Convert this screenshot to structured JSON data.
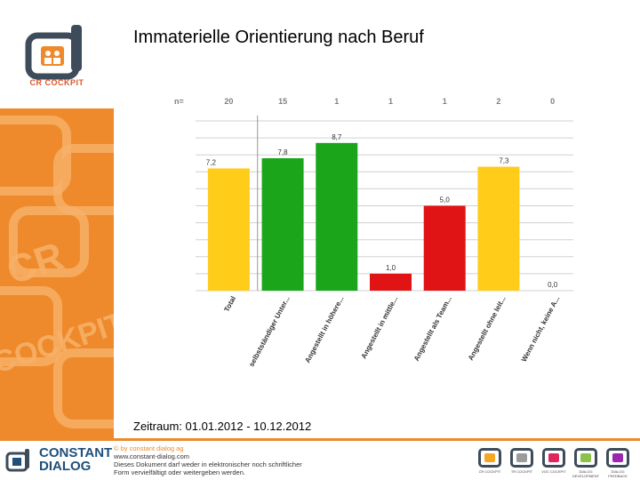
{
  "title": "Immaterielle Orientierung nach Beruf",
  "logo": {
    "caption": "CR COCKPIT"
  },
  "period": "Zeitraum: 01.01.2012 - 10.12.2012",
  "chart_data": {
    "type": "bar",
    "title": "Immaterielle Orientierung nach Beruf",
    "n_label": "n=",
    "categories": [
      "Total",
      "selbstständiger Unter...",
      "Angestellt in höhere...",
      "Angestellt in mittle...",
      "Angestellt als Team...",
      "Angestellt ohne leit...",
      "Wenn nicht, keine A..."
    ],
    "n_values": [
      "20",
      "15",
      "1",
      "1",
      "1",
      "2",
      "0"
    ],
    "values": [
      7.2,
      7.8,
      8.7,
      1.0,
      5.0,
      7.3,
      0.0
    ],
    "value_labels": [
      "7,2",
      "7,8",
      "8,7",
      "1,0",
      "5,0",
      "7,3",
      "0,0"
    ],
    "colors": [
      "#ffcc1a",
      "#1aa51a",
      "#1aa51a",
      "#e01414",
      "#e01414",
      "#ffcc1a",
      "#ffcc1a"
    ],
    "ylim": [
      0,
      10
    ],
    "grid": true
  },
  "footer": {
    "brand_line1": "CONSTANT",
    "brand_line2": "DIALOG",
    "lines": [
      "© by constant dialog ag",
      "www.constant-dialog.com",
      "Dieses Dokument darf weder in elektronischer noch schriftlicher",
      "Form vervielfältigt oder weitergeben werden."
    ],
    "icons": [
      {
        "name": "cr-cockpit",
        "caption": "CR COCKPIT",
        "color": "#f5a623"
      },
      {
        "name": "tr-cockpit",
        "caption": "TR COCKPIT",
        "color": "#9b9b9b"
      },
      {
        "name": "voc-cockpit",
        "caption": "VOC COCKPIT",
        "color": "#e0245e"
      },
      {
        "name": "dialog-development",
        "caption": "DIALOG DEVELOPMENT",
        "color": "#8bc34a"
      },
      {
        "name": "dialog-feedback",
        "caption": "DIALOG FEEDBACK",
        "color": "#9c27b0"
      }
    ]
  }
}
